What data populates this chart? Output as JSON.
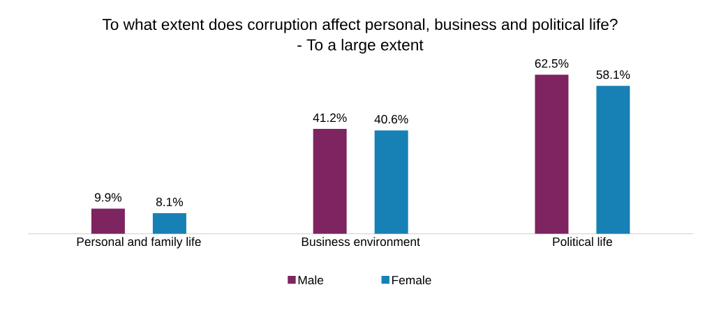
{
  "chart_data": {
    "type": "bar",
    "title": "To what extent does corruption affect personal, business and political life?",
    "subtitle": "- To a large extent",
    "categories": [
      "Personal and family life",
      "Business environment",
      "Political life"
    ],
    "series": [
      {
        "name": "Male",
        "color": "#7e2460",
        "values": [
          9.9,
          41.2,
          62.5
        ],
        "value_labels": [
          "9.9%",
          "41.2%",
          "62.5%"
        ]
      },
      {
        "name": "Female",
        "color": "#1780b4",
        "values": [
          8.1,
          40.6,
          58.1
        ],
        "value_labels": [
          "8.1%",
          "40.6%",
          "58.1%"
        ]
      }
    ],
    "legend": "bottom"
  }
}
